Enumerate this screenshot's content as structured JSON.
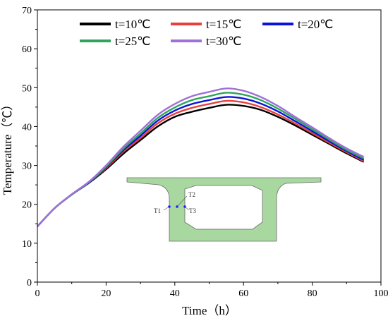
{
  "chart_data": {
    "type": "line",
    "xlabel": "Time（h）",
    "ylabel": "Temperature（℃）",
    "xlim": [
      0,
      100
    ],
    "ylim": [
      0,
      70
    ],
    "xticks": [
      0,
      20,
      40,
      60,
      80,
      100
    ],
    "yticks": [
      0,
      10,
      20,
      30,
      40,
      50,
      60,
      70
    ],
    "grid": false,
    "legend_position": "top",
    "x": [
      0,
      5,
      10,
      15,
      20,
      25,
      30,
      35,
      40,
      45,
      50,
      55,
      60,
      65,
      70,
      75,
      80,
      85,
      90,
      95
    ],
    "series": [
      {
        "name": "t=10℃",
        "color": "#000000",
        "values": [
          14.3,
          19.0,
          22.5,
          25.5,
          29.0,
          33.0,
          36.5,
          40.0,
          42.5,
          43.8,
          44.8,
          45.6,
          45.3,
          44.3,
          42.5,
          40.3,
          37.9,
          35.5,
          33.1,
          30.9
        ]
      },
      {
        "name": "t=15℃",
        "color": "#e8413c",
        "values": [
          14.3,
          19.0,
          22.5,
          25.6,
          29.3,
          33.5,
          37.0,
          40.8,
          43.3,
          44.8,
          45.8,
          46.6,
          46.2,
          45.0,
          43.1,
          40.8,
          38.3,
          35.8,
          33.4,
          31.1
        ]
      },
      {
        "name": "t=20℃",
        "color": "#0a14d8",
        "values": [
          14.3,
          19.0,
          22.5,
          25.6,
          29.5,
          33.9,
          37.6,
          41.5,
          44.1,
          45.8,
          46.8,
          47.6,
          47.2,
          45.9,
          43.9,
          41.4,
          38.8,
          36.2,
          33.7,
          31.4
        ]
      },
      {
        "name": "t=25℃",
        "color": "#2ea55a",
        "values": [
          14.3,
          19.0,
          22.5,
          25.7,
          29.7,
          34.3,
          38.2,
          42.2,
          44.9,
          46.8,
          47.8,
          48.7,
          48.2,
          46.8,
          44.6,
          42.0,
          39.3,
          36.6,
          34.0,
          31.8
        ]
      },
      {
        "name": "t=30℃",
        "color": "#a070d8",
        "values": [
          14.3,
          19.0,
          22.6,
          25.8,
          30.0,
          34.8,
          38.9,
          43.0,
          45.8,
          47.8,
          48.9,
          49.8,
          49.2,
          47.6,
          45.3,
          42.5,
          39.8,
          37.0,
          34.4,
          32.2
        ]
      }
    ],
    "inset": {
      "labels": [
        "T1",
        "T2",
        "T3"
      ]
    }
  }
}
